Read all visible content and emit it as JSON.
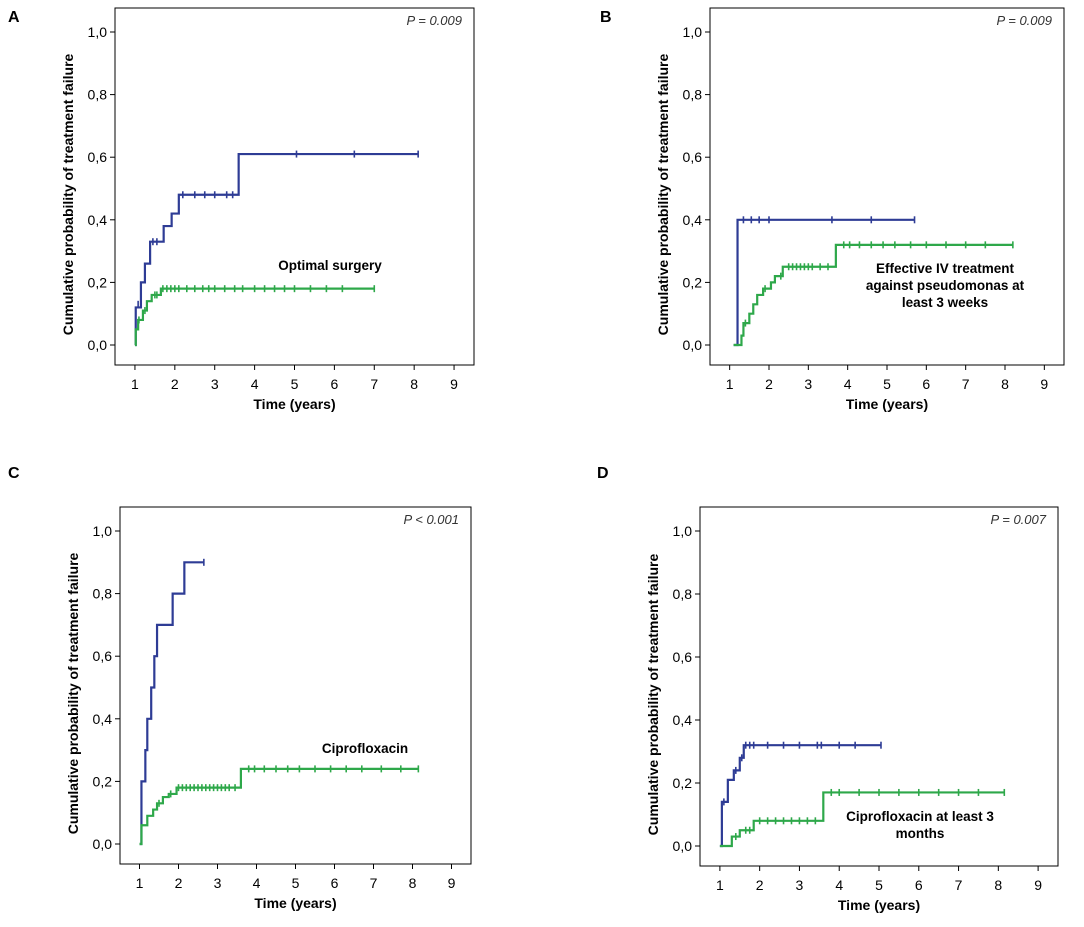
{
  "colors": {
    "blue": "#2e3c95",
    "green": "#2ea84a"
  },
  "chart_data": [
    {
      "panel": "A",
      "type": "line",
      "xlabel": "Time (years)",
      "ylabel": "Cumulative probability of treatment failure",
      "p_value": "P = 0.009",
      "annotation": [
        "Optimal surgery"
      ],
      "xlim": [
        0.5,
        9.5
      ],
      "ylim": [
        0,
        1.05
      ],
      "x_ticks": [
        1,
        2,
        3,
        4,
        5,
        6,
        7,
        8,
        9
      ],
      "y_ticks": [
        "0,0",
        "0,2",
        "0,4",
        "0,6",
        "0,8",
        "1,0"
      ],
      "y_tick_values": [
        0,
        0.2,
        0.4,
        0.6,
        0.8,
        1.0
      ],
      "series": [
        {
          "name": "blue",
          "color": "blue",
          "steps": [
            [
              1.0,
              0.0
            ],
            [
              1.02,
              0.12
            ],
            [
              1.15,
              0.2
            ],
            [
              1.25,
              0.26
            ],
            [
              1.38,
              0.33
            ],
            [
              1.72,
              0.38
            ],
            [
              1.92,
              0.42
            ],
            [
              2.1,
              0.48
            ],
            [
              3.6,
              0.61
            ],
            [
              8.1,
              0.61
            ]
          ],
          "censored": [
            [
              1.08,
              0.13
            ],
            [
              1.45,
              0.33
            ],
            [
              1.55,
              0.33
            ],
            [
              2.2,
              0.48
            ],
            [
              2.5,
              0.48
            ],
            [
              2.75,
              0.48
            ],
            [
              3.0,
              0.48
            ],
            [
              3.3,
              0.48
            ],
            [
              3.45,
              0.48
            ],
            [
              5.05,
              0.61
            ],
            [
              6.5,
              0.61
            ],
            [
              8.1,
              0.61
            ]
          ]
        },
        {
          "name": "green",
          "color": "green",
          "steps": [
            [
              1.0,
              0.0
            ],
            [
              1.02,
              0.05
            ],
            [
              1.08,
              0.08
            ],
            [
              1.2,
              0.11
            ],
            [
              1.3,
              0.14
            ],
            [
              1.42,
              0.16
            ],
            [
              1.65,
              0.18
            ],
            [
              7.0,
              0.18
            ]
          ],
          "censored": [
            [
              1.1,
              0.08
            ],
            [
              1.25,
              0.11
            ],
            [
              1.5,
              0.16
            ],
            [
              1.55,
              0.16
            ],
            [
              1.7,
              0.18
            ],
            [
              1.8,
              0.18
            ],
            [
              1.9,
              0.18
            ],
            [
              2.0,
              0.18
            ],
            [
              2.1,
              0.18
            ],
            [
              2.3,
              0.18
            ],
            [
              2.5,
              0.18
            ],
            [
              2.7,
              0.18
            ],
            [
              2.85,
              0.18
            ],
            [
              3.0,
              0.18
            ],
            [
              3.25,
              0.18
            ],
            [
              3.5,
              0.18
            ],
            [
              3.7,
              0.18
            ],
            [
              4.0,
              0.18
            ],
            [
              4.25,
              0.18
            ],
            [
              4.5,
              0.18
            ],
            [
              4.75,
              0.18
            ],
            [
              5.0,
              0.18
            ],
            [
              5.4,
              0.18
            ],
            [
              5.8,
              0.18
            ],
            [
              6.2,
              0.18
            ],
            [
              7.0,
              0.18
            ]
          ]
        }
      ]
    },
    {
      "panel": "B",
      "type": "line",
      "xlabel": "Time (years)",
      "ylabel": "Cumulative probability of treatment failure",
      "p_value": "P = 0.009",
      "annotation": [
        "Effective IV treatment",
        "against pseudomonas at",
        "least 3 weeks"
      ],
      "xlim": [
        0.5,
        9.5
      ],
      "ylim": [
        0,
        1.05
      ],
      "x_ticks": [
        1,
        2,
        3,
        4,
        5,
        6,
        7,
        8,
        9
      ],
      "y_ticks": [
        "0,0",
        "0,2",
        "0,4",
        "0,6",
        "0,8",
        "1,0"
      ],
      "y_tick_values": [
        0,
        0.2,
        0.4,
        0.6,
        0.8,
        1.0
      ],
      "series": [
        {
          "name": "blue",
          "color": "blue",
          "steps": [
            [
              1.1,
              0.0
            ],
            [
              1.2,
              0.4
            ],
            [
              5.7,
              0.4
            ]
          ],
          "censored": [
            [
              1.35,
              0.4
            ],
            [
              1.55,
              0.4
            ],
            [
              1.75,
              0.4
            ],
            [
              2.0,
              0.4
            ],
            [
              3.6,
              0.4
            ],
            [
              4.6,
              0.4
            ],
            [
              5.7,
              0.4
            ]
          ]
        },
        {
          "name": "green",
          "color": "green",
          "steps": [
            [
              1.1,
              0.0
            ],
            [
              1.3,
              0.03
            ],
            [
              1.35,
              0.07
            ],
            [
              1.5,
              0.1
            ],
            [
              1.6,
              0.13
            ],
            [
              1.7,
              0.16
            ],
            [
              1.85,
              0.18
            ],
            [
              2.05,
              0.2
            ],
            [
              2.15,
              0.22
            ],
            [
              2.35,
              0.25
            ],
            [
              3.7,
              0.32
            ],
            [
              8.2,
              0.32
            ]
          ],
          "censored": [
            [
              1.4,
              0.07
            ],
            [
              1.9,
              0.18
            ],
            [
              2.3,
              0.22
            ],
            [
              2.5,
              0.25
            ],
            [
              2.6,
              0.25
            ],
            [
              2.7,
              0.25
            ],
            [
              2.8,
              0.25
            ],
            [
              2.9,
              0.25
            ],
            [
              3.0,
              0.25
            ],
            [
              3.1,
              0.25
            ],
            [
              3.3,
              0.25
            ],
            [
              3.5,
              0.25
            ],
            [
              3.9,
              0.32
            ],
            [
              4.05,
              0.32
            ],
            [
              4.3,
              0.32
            ],
            [
              4.6,
              0.32
            ],
            [
              4.9,
              0.32
            ],
            [
              5.2,
              0.32
            ],
            [
              5.6,
              0.32
            ],
            [
              6.0,
              0.32
            ],
            [
              6.5,
              0.32
            ],
            [
              7.0,
              0.32
            ],
            [
              7.5,
              0.32
            ],
            [
              8.2,
              0.32
            ]
          ]
        }
      ]
    },
    {
      "panel": "C",
      "type": "line",
      "xlabel": "Time (years)",
      "ylabel": "Cumulative probability of treatment failure",
      "p_value": "P < 0.001",
      "annotation": [
        "Ciprofloxacin"
      ],
      "xlim": [
        0.5,
        9.5
      ],
      "ylim": [
        0,
        1.05
      ],
      "x_ticks": [
        1,
        2,
        3,
        4,
        5,
        6,
        7,
        8,
        9
      ],
      "y_ticks": [
        "0,0",
        "0,2",
        "0,4",
        "0,6",
        "0,8",
        "1,0"
      ],
      "y_tick_values": [
        0,
        0.2,
        0.4,
        0.6,
        0.8,
        1.0
      ],
      "series": [
        {
          "name": "blue",
          "color": "blue",
          "steps": [
            [
              1.0,
              0.0
            ],
            [
              1.05,
              0.2
            ],
            [
              1.15,
              0.3
            ],
            [
              1.2,
              0.4
            ],
            [
              1.3,
              0.5
            ],
            [
              1.38,
              0.6
            ],
            [
              1.45,
              0.7
            ],
            [
              1.85,
              0.8
            ],
            [
              2.15,
              0.9
            ],
            [
              2.65,
              0.9
            ]
          ],
          "censored": [
            [
              2.65,
              0.9
            ]
          ]
        },
        {
          "name": "green",
          "color": "green",
          "steps": [
            [
              1.0,
              0.0
            ],
            [
              1.05,
              0.06
            ],
            [
              1.2,
              0.09
            ],
            [
              1.35,
              0.11
            ],
            [
              1.45,
              0.13
            ],
            [
              1.6,
              0.15
            ],
            [
              1.75,
              0.16
            ],
            [
              1.95,
              0.18
            ],
            [
              3.6,
              0.24
            ],
            [
              8.15,
              0.24
            ]
          ],
          "censored": [
            [
              1.5,
              0.13
            ],
            [
              1.8,
              0.16
            ],
            [
              2.0,
              0.18
            ],
            [
              2.1,
              0.18
            ],
            [
              2.2,
              0.18
            ],
            [
              2.3,
              0.18
            ],
            [
              2.4,
              0.18
            ],
            [
              2.5,
              0.18
            ],
            [
              2.6,
              0.18
            ],
            [
              2.7,
              0.18
            ],
            [
              2.8,
              0.18
            ],
            [
              2.9,
              0.18
            ],
            [
              3.0,
              0.18
            ],
            [
              3.1,
              0.18
            ],
            [
              3.2,
              0.18
            ],
            [
              3.3,
              0.18
            ],
            [
              3.45,
              0.18
            ],
            [
              3.8,
              0.24
            ],
            [
              3.95,
              0.24
            ],
            [
              4.2,
              0.24
            ],
            [
              4.5,
              0.24
            ],
            [
              4.8,
              0.24
            ],
            [
              5.1,
              0.24
            ],
            [
              5.5,
              0.24
            ],
            [
              5.9,
              0.24
            ],
            [
              6.3,
              0.24
            ],
            [
              6.7,
              0.24
            ],
            [
              7.2,
              0.24
            ],
            [
              7.7,
              0.24
            ],
            [
              8.15,
              0.24
            ]
          ]
        }
      ]
    },
    {
      "panel": "D",
      "type": "line",
      "xlabel": "Time (years)",
      "ylabel": "Cumulative probability of treatment failure",
      "p_value": "P = 0.007",
      "annotation": [
        "Ciprofloxacin at least 3",
        "months"
      ],
      "xlim": [
        0.5,
        9.5
      ],
      "ylim": [
        0,
        1.05
      ],
      "x_ticks": [
        1,
        2,
        3,
        4,
        5,
        6,
        7,
        8,
        9
      ],
      "y_ticks": [
        "0,0",
        "0,2",
        "0,4",
        "0,6",
        "0,8",
        "1,0"
      ],
      "y_tick_values": [
        0,
        0.2,
        0.4,
        0.6,
        0.8,
        1.0
      ],
      "series": [
        {
          "name": "blue",
          "color": "blue",
          "steps": [
            [
              1.0,
              0.0
            ],
            [
              1.05,
              0.14
            ],
            [
              1.2,
              0.21
            ],
            [
              1.35,
              0.24
            ],
            [
              1.5,
              0.28
            ],
            [
              1.6,
              0.32
            ],
            [
              5.05,
              0.32
            ]
          ],
          "censored": [
            [
              1.1,
              0.14
            ],
            [
              1.4,
              0.24
            ],
            [
              1.55,
              0.28
            ],
            [
              1.65,
              0.32
            ],
            [
              1.75,
              0.32
            ],
            [
              1.85,
              0.32
            ],
            [
              2.2,
              0.32
            ],
            [
              2.6,
              0.32
            ],
            [
              3.0,
              0.32
            ],
            [
              3.45,
              0.32
            ],
            [
              3.55,
              0.32
            ],
            [
              4.0,
              0.32
            ],
            [
              4.4,
              0.32
            ],
            [
              5.05,
              0.32
            ]
          ]
        },
        {
          "name": "green",
          "color": "green",
          "steps": [
            [
              1.0,
              0.0
            ],
            [
              1.3,
              0.03
            ],
            [
              1.5,
              0.05
            ],
            [
              1.85,
              0.08
            ],
            [
              3.6,
              0.17
            ],
            [
              8.15,
              0.17
            ]
          ],
          "censored": [
            [
              1.4,
              0.03
            ],
            [
              1.65,
              0.05
            ],
            [
              1.75,
              0.05
            ],
            [
              2.0,
              0.08
            ],
            [
              2.2,
              0.08
            ],
            [
              2.4,
              0.08
            ],
            [
              2.6,
              0.08
            ],
            [
              2.8,
              0.08
            ],
            [
              3.0,
              0.08
            ],
            [
              3.2,
              0.08
            ],
            [
              3.4,
              0.08
            ],
            [
              3.8,
              0.17
            ],
            [
              4.0,
              0.17
            ],
            [
              4.5,
              0.17
            ],
            [
              5.0,
              0.17
            ],
            [
              5.5,
              0.17
            ],
            [
              6.0,
              0.17
            ],
            [
              6.5,
              0.17
            ],
            [
              7.0,
              0.17
            ],
            [
              7.5,
              0.17
            ],
            [
              8.15,
              0.17
            ]
          ]
        }
      ]
    }
  ]
}
